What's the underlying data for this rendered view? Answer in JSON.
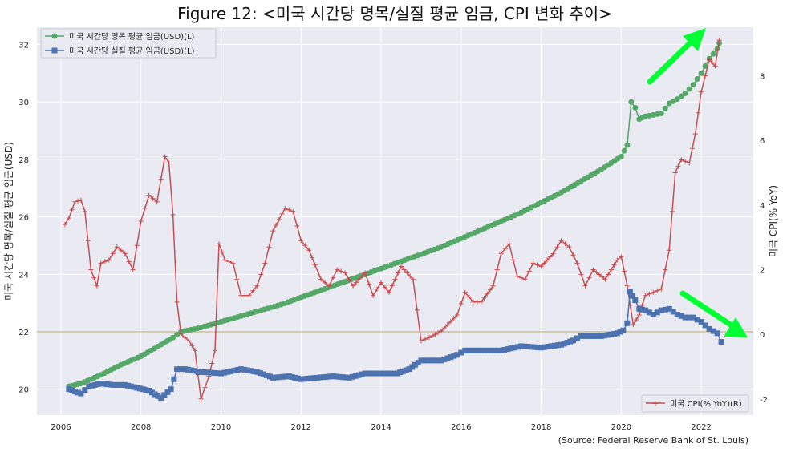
{
  "chart_data": {
    "type": "line",
    "title": "Figure 12: <미국 시간당 명목/실질 평균 임금, CPI 변화 추이>",
    "ylabel_left": "미국 시간당 명목/실질 평균 임금(USD)",
    "ylabel_right": "미국 CPI(% YoY)",
    "source": "(Source: Federal Reserve Bank of St. Louis)",
    "xlim": [
      2005.4,
      2023.3
    ],
    "ylim_left": [
      19.1,
      32.6
    ],
    "ylim_right": [
      -2.5,
      9.5
    ],
    "x_ticks": [
      "2006",
      "2008",
      "2010",
      "2012",
      "2014",
      "2016",
      "2018",
      "2020",
      "2022"
    ],
    "x_tick_values": [
      2006,
      2008,
      2010,
      2012,
      2014,
      2016,
      2018,
      2020,
      2022
    ],
    "y_ticks_left": [
      "20",
      "22",
      "24",
      "26",
      "28",
      "30",
      "32"
    ],
    "y_tick_values_left": [
      20,
      22,
      24,
      26,
      28,
      30,
      32
    ],
    "y_ticks_right": [
      "-2",
      "0",
      "2",
      "4",
      "6",
      "8"
    ],
    "y_tick_values_right": [
      -2,
      0,
      2,
      4,
      6,
      8
    ],
    "reference_line_left": 22.0,
    "grid": true,
    "series": [
      {
        "name": "미국 시간당 명목 평균 임금(USD)(L)",
        "axis": "left",
        "color": "#55a868",
        "marker": "circle",
        "points": [
          [
            2006.2,
            20.1
          ],
          [
            2006.5,
            20.2
          ],
          [
            2007.0,
            20.5
          ],
          [
            2007.5,
            20.85
          ],
          [
            2008.0,
            21.15
          ],
          [
            2008.5,
            21.55
          ],
          [
            2008.8,
            21.8
          ],
          [
            2009.0,
            22.0
          ],
          [
            2009.5,
            22.15
          ],
          [
            2010.0,
            22.35
          ],
          [
            2010.5,
            22.55
          ],
          [
            2011.0,
            22.75
          ],
          [
            2011.5,
            22.95
          ],
          [
            2012.0,
            23.2
          ],
          [
            2012.5,
            23.45
          ],
          [
            2013.0,
            23.7
          ],
          [
            2013.5,
            23.95
          ],
          [
            2014.0,
            24.2
          ],
          [
            2014.5,
            24.45
          ],
          [
            2015.0,
            24.7
          ],
          [
            2015.5,
            24.95
          ],
          [
            2016.0,
            25.25
          ],
          [
            2016.5,
            25.55
          ],
          [
            2017.0,
            25.85
          ],
          [
            2017.5,
            26.15
          ],
          [
            2018.0,
            26.5
          ],
          [
            2018.5,
            26.85
          ],
          [
            2019.0,
            27.25
          ],
          [
            2019.5,
            27.65
          ],
          [
            2020.0,
            28.1
          ],
          [
            2020.15,
            28.5
          ],
          [
            2020.25,
            30.0
          ],
          [
            2020.35,
            29.8
          ],
          [
            2020.45,
            29.4
          ],
          [
            2020.6,
            29.5
          ],
          [
            2020.8,
            29.55
          ],
          [
            2021.0,
            29.6
          ],
          [
            2021.2,
            29.95
          ],
          [
            2021.4,
            30.1
          ],
          [
            2021.6,
            30.3
          ],
          [
            2021.8,
            30.6
          ],
          [
            2022.0,
            31.0
          ],
          [
            2022.2,
            31.5
          ],
          [
            2022.4,
            31.85
          ],
          [
            2022.45,
            32.05
          ]
        ]
      },
      {
        "name": "미국 시간당 실질 평균 임금(USD)(L)",
        "axis": "left",
        "color": "#4c72b0",
        "marker": "square",
        "points": [
          [
            2006.2,
            20.0
          ],
          [
            2006.5,
            19.85
          ],
          [
            2006.7,
            20.1
          ],
          [
            2007.0,
            20.2
          ],
          [
            2007.3,
            20.15
          ],
          [
            2007.6,
            20.15
          ],
          [
            2007.9,
            20.05
          ],
          [
            2008.2,
            19.95
          ],
          [
            2008.5,
            19.7
          ],
          [
            2008.75,
            20.0
          ],
          [
            2008.9,
            20.7
          ],
          [
            2009.1,
            20.7
          ],
          [
            2009.5,
            20.6
          ],
          [
            2010.0,
            20.55
          ],
          [
            2010.5,
            20.7
          ],
          [
            2010.9,
            20.6
          ],
          [
            2011.3,
            20.4
          ],
          [
            2011.7,
            20.45
          ],
          [
            2012.0,
            20.35
          ],
          [
            2012.4,
            20.4
          ],
          [
            2012.8,
            20.45
          ],
          [
            2013.2,
            20.4
          ],
          [
            2013.6,
            20.55
          ],
          [
            2014.0,
            20.55
          ],
          [
            2014.4,
            20.55
          ],
          [
            2014.7,
            20.7
          ],
          [
            2015.0,
            21.0
          ],
          [
            2015.5,
            21.0
          ],
          [
            2015.9,
            21.2
          ],
          [
            2016.1,
            21.35
          ],
          [
            2016.5,
            21.35
          ],
          [
            2017.0,
            21.35
          ],
          [
            2017.5,
            21.5
          ],
          [
            2018.0,
            21.45
          ],
          [
            2018.5,
            21.55
          ],
          [
            2018.8,
            21.7
          ],
          [
            2019.0,
            21.85
          ],
          [
            2019.5,
            21.85
          ],
          [
            2019.9,
            21.95
          ],
          [
            2020.05,
            22.05
          ],
          [
            2020.15,
            22.3
          ],
          [
            2020.22,
            23.4
          ],
          [
            2020.35,
            23.1
          ],
          [
            2020.45,
            22.8
          ],
          [
            2020.6,
            22.75
          ],
          [
            2020.8,
            22.6
          ],
          [
            2021.0,
            22.75
          ],
          [
            2021.2,
            22.8
          ],
          [
            2021.4,
            22.6
          ],
          [
            2021.6,
            22.5
          ],
          [
            2021.8,
            22.5
          ],
          [
            2022.0,
            22.35
          ],
          [
            2022.2,
            22.1
          ],
          [
            2022.4,
            21.95
          ],
          [
            2022.5,
            21.65
          ]
        ]
      },
      {
        "name": "미국 CPI(% YoY)(R)",
        "axis": "right",
        "color": "#c44e52",
        "marker": "plus",
        "points": [
          [
            2006.1,
            3.4
          ],
          [
            2006.2,
            3.6
          ],
          [
            2006.35,
            4.1
          ],
          [
            2006.5,
            4.15
          ],
          [
            2006.6,
            3.8
          ],
          [
            2006.75,
            2.0
          ],
          [
            2006.9,
            1.5
          ],
          [
            2007.0,
            2.2
          ],
          [
            2007.2,
            2.3
          ],
          [
            2007.4,
            2.7
          ],
          [
            2007.6,
            2.5
          ],
          [
            2007.8,
            2.0
          ],
          [
            2008.0,
            3.5
          ],
          [
            2008.2,
            4.3
          ],
          [
            2008.4,
            4.1
          ],
          [
            2008.6,
            5.5
          ],
          [
            2008.7,
            5.3
          ],
          [
            2008.8,
            3.7
          ],
          [
            2008.9,
            1.0
          ],
          [
            2009.0,
            0.0
          ],
          [
            2009.2,
            -0.2
          ],
          [
            2009.35,
            -0.5
          ],
          [
            2009.5,
            -2.0
          ],
          [
            2009.7,
            -1.3
          ],
          [
            2009.85,
            -0.5
          ],
          [
            2009.95,
            2.8
          ],
          [
            2010.1,
            2.3
          ],
          [
            2010.3,
            2.2
          ],
          [
            2010.5,
            1.2
          ],
          [
            2010.7,
            1.2
          ],
          [
            2010.9,
            1.5
          ],
          [
            2011.1,
            2.2
          ],
          [
            2011.3,
            3.2
          ],
          [
            2011.6,
            3.9
          ],
          [
            2011.8,
            3.8
          ],
          [
            2012.0,
            2.9
          ],
          [
            2012.2,
            2.6
          ],
          [
            2012.5,
            1.7
          ],
          [
            2012.7,
            1.5
          ],
          [
            2012.9,
            2.0
          ],
          [
            2013.1,
            1.9
          ],
          [
            2013.3,
            1.5
          ],
          [
            2013.6,
            1.9
          ],
          [
            2013.8,
            1.2
          ],
          [
            2014.0,
            1.6
          ],
          [
            2014.2,
            1.3
          ],
          [
            2014.5,
            2.1
          ],
          [
            2014.8,
            1.7
          ],
          [
            2015.0,
            -0.2
          ],
          [
            2015.2,
            -0.1
          ],
          [
            2015.5,
            0.1
          ],
          [
            2015.9,
            0.6
          ],
          [
            2016.1,
            1.3
          ],
          [
            2016.3,
            1.0
          ],
          [
            2016.5,
            1.0
          ],
          [
            2016.8,
            1.5
          ],
          [
            2017.0,
            2.5
          ],
          [
            2017.2,
            2.8
          ],
          [
            2017.4,
            1.8
          ],
          [
            2017.6,
            1.7
          ],
          [
            2017.8,
            2.2
          ],
          [
            2018.0,
            2.1
          ],
          [
            2018.3,
            2.5
          ],
          [
            2018.5,
            2.9
          ],
          [
            2018.7,
            2.7
          ],
          [
            2018.9,
            2.2
          ],
          [
            2019.1,
            1.5
          ],
          [
            2019.3,
            2.0
          ],
          [
            2019.6,
            1.7
          ],
          [
            2019.9,
            2.3
          ],
          [
            2020.0,
            2.4
          ],
          [
            2020.15,
            1.5
          ],
          [
            2020.3,
            0.3
          ],
          [
            2020.45,
            0.6
          ],
          [
            2020.6,
            1.2
          ],
          [
            2020.8,
            1.3
          ],
          [
            2021.0,
            1.4
          ],
          [
            2021.2,
            2.6
          ],
          [
            2021.35,
            5.0
          ],
          [
            2021.5,
            5.4
          ],
          [
            2021.7,
            5.3
          ],
          [
            2021.85,
            6.2
          ],
          [
            2022.0,
            7.5
          ],
          [
            2022.2,
            8.5
          ],
          [
            2022.35,
            8.3
          ],
          [
            2022.45,
            9.1
          ]
        ]
      }
    ]
  }
}
